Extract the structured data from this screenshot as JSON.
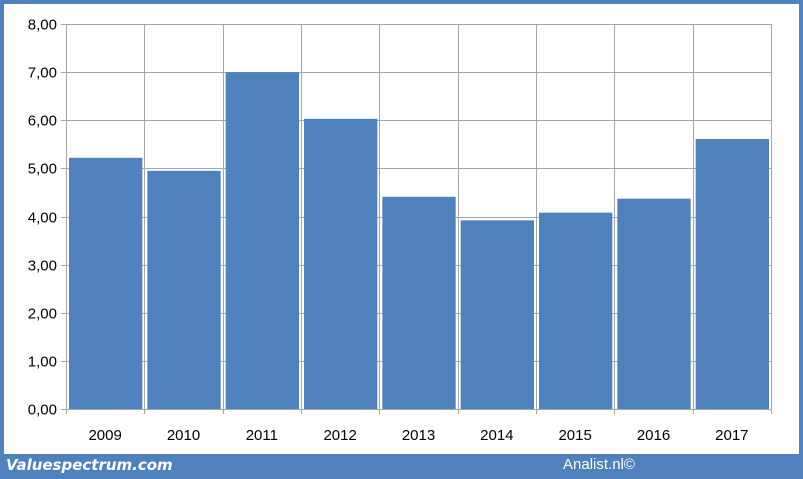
{
  "chart_data": {
    "type": "bar",
    "categories": [
      "2009",
      "2010",
      "2011",
      "2012",
      "2013",
      "2014",
      "2015",
      "2016",
      "2017"
    ],
    "values": [
      5.22,
      4.95,
      7.0,
      6.03,
      4.41,
      3.92,
      4.08,
      4.37,
      5.61
    ],
    "ylim": [
      0,
      8
    ],
    "yticks": [
      "0,00",
      "1,00",
      "2,00",
      "3,00",
      "4,00",
      "5,00",
      "6,00",
      "7,00",
      "8,00"
    ],
    "grid": true,
    "bar_color": "#4f81bd",
    "grid_color": "#a6a6a6"
  },
  "footer": {
    "left_text": "Valuespectrum.com",
    "right_text": "Analist.nl©"
  },
  "colors": {
    "frame": "#4f81bd",
    "plot_background": "#ffffff",
    "text": "#ffffff"
  }
}
